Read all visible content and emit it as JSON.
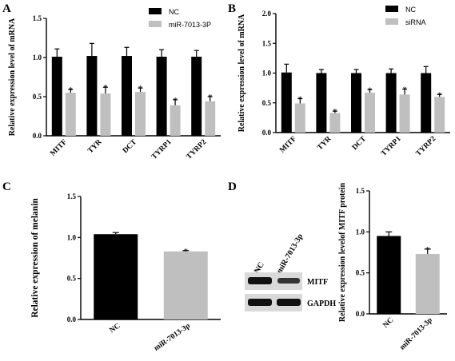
{
  "panels": {
    "A": "A",
    "B": "B",
    "C": "C",
    "D": "D"
  },
  "blot": {
    "lane_labels": [
      "NC",
      "miR-7013-3p"
    ],
    "bands": [
      "MITF",
      "GAPDH"
    ]
  },
  "colors": {
    "nc": "#000000",
    "treated": "#bfbfbf"
  },
  "chart_data": [
    {
      "id": "A",
      "type": "bar",
      "title": "",
      "xlabel": "",
      "ylabel": "Relative expression  level of mRNA",
      "ylim": [
        0,
        1.5
      ],
      "yticks": [
        "0.0",
        "0.5",
        "1.0",
        "1.5"
      ],
      "categories": [
        "MITF",
        "TYR",
        "DCT",
        "TYRP1",
        "TYRP2"
      ],
      "legend": "top-right",
      "series": [
        {
          "name": "NC",
          "values": [
            1.01,
            1.02,
            1.02,
            1.01,
            1.01
          ],
          "errors": [
            0.1,
            0.16,
            0.11,
            0.09,
            0.08
          ]
        },
        {
          "name": "miR-7013-3P",
          "values": [
            0.55,
            0.54,
            0.56,
            0.39,
            0.44
          ],
          "errors": [
            0.04,
            0.08,
            0.05,
            0.07,
            0.06
          ]
        }
      ],
      "annotations": [
        "*",
        "*",
        "*",
        "*",
        "*"
      ]
    },
    {
      "id": "B",
      "type": "bar",
      "title": "",
      "xlabel": "",
      "ylabel": "Relative expression  level of mRNA",
      "ylim": [
        0,
        2.0
      ],
      "yticks": [
        "0.0",
        "0.5",
        "1.0",
        "1.5",
        "2.0"
      ],
      "categories": [
        "MITF",
        "TYR",
        "DCT",
        "TYRP1",
        "TYRP2"
      ],
      "legend": "top-right",
      "series": [
        {
          "name": "NC",
          "values": [
            1.01,
            1.0,
            1.0,
            1.0,
            1.0
          ],
          "errors": [
            0.14,
            0.06,
            0.06,
            0.07,
            0.11
          ]
        },
        {
          "name": "siRNA",
          "values": [
            0.49,
            0.33,
            0.67,
            0.64,
            0.6
          ],
          "errors": [
            0.08,
            0.03,
            0.05,
            0.09,
            0.04
          ]
        }
      ],
      "annotations": [
        "*",
        "*",
        "*",
        "*",
        "*"
      ]
    },
    {
      "id": "C",
      "type": "bar",
      "title": "",
      "xlabel": "",
      "ylabel": "Relative expression of melanin",
      "ylim": [
        0,
        1.5
      ],
      "yticks": [
        "0.0",
        "0.5",
        "1.0",
        "1.5"
      ],
      "categories": [
        "NC",
        "miR-7013-3p"
      ],
      "values": [
        1.04,
        0.83
      ],
      "errors": [
        0.02,
        0.01
      ],
      "annotations": [
        "",
        "*"
      ]
    },
    {
      "id": "D",
      "type": "bar",
      "title": "",
      "xlabel": "",
      "ylabel": "Relative expression levelof MITF protein",
      "ylim": [
        0,
        1.5
      ],
      "yticks": [
        "0.0",
        "0.5",
        "1.0",
        "1.5"
      ],
      "categories": [
        "NC",
        "miR-7013-3p"
      ],
      "values": [
        0.95,
        0.73
      ],
      "errors": [
        0.05,
        0.06
      ],
      "annotations": [
        "",
        "*"
      ]
    }
  ]
}
